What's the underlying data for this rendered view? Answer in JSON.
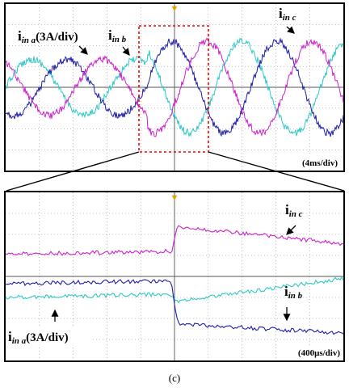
{
  "figure": {
    "caption": "(c)"
  },
  "chart_data": [
    {
      "type": "line",
      "time_div": "(4ms/div)",
      "x_divisions": 10,
      "y_divisions": 8,
      "trigger_marker": "▼",
      "labels": {
        "a_main": "i",
        "a_sub": "in a",
        "a_scale": "(3A/div)",
        "b_main": "i",
        "b_sub": "in b",
        "c_main": "i",
        "c_sub": "in c"
      },
      "series": [
        {
          "name": "i_in a",
          "color": "#2ec9c6",
          "phase_deg": 0
        },
        {
          "name": "i_in b",
          "color": "#1e1ea8",
          "phase_deg": -120
        },
        {
          "name": "i_in c",
          "color": "#cc22cc",
          "phase_deg": 120
        }
      ],
      "step_at_div": 4.2,
      "amplitude_before_div": 1.35,
      "amplitude_after_div": 2.2
    },
    {
      "type": "line",
      "time_div": "(400μs/div)",
      "x_divisions": 10,
      "y_divisions": 8,
      "trigger_marker": "▼",
      "labels": {
        "a_main": "i",
        "a_sub": "in a",
        "a_scale": "(3A/div)",
        "b_main": "i",
        "b_sub": "in b",
        "c_main": "i",
        "c_sub": "in c"
      },
      "series": [
        {
          "name": "i_in a",
          "color": "#2ec9c6"
        },
        {
          "name": "i_in b",
          "color": "#1e1ea8"
        },
        {
          "name": "i_in c",
          "color": "#cc22cc"
        }
      ]
    }
  ],
  "colors": {
    "selection_box": "#ff0000",
    "grid": "#8c8c8c",
    "frame": "#000000"
  }
}
